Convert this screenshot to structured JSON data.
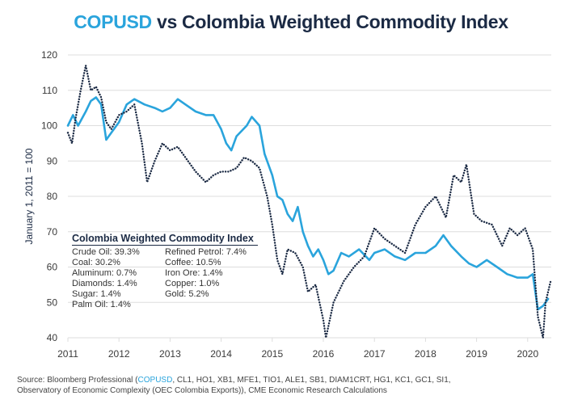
{
  "title": {
    "accent": "COPUSD",
    "rest": " vs Colombia Weighted Commodity Index"
  },
  "chart_data": {
    "type": "line",
    "title": "COPUSD vs Colombia Weighted Commodity Index",
    "xlabel": "",
    "ylabel": "January 1, 2011 = 100",
    "xlim": [
      2011,
      2020.45
    ],
    "ylim": [
      40,
      120
    ],
    "grid": true,
    "x_ticks": [
      2011,
      2012,
      2013,
      2014,
      2015,
      2016,
      2017,
      2018,
      2019,
      2020
    ],
    "x_tick_labels": [
      "2011",
      "2012",
      "2013",
      "2014",
      "2015",
      "2016",
      "2017",
      "2018",
      "2019",
      "2020"
    ],
    "y_ticks": [
      40,
      50,
      60,
      70,
      80,
      90,
      100,
      110,
      120
    ],
    "y_tick_labels": [
      "40",
      "50",
      "60",
      "70",
      "80",
      "90",
      "100",
      "110",
      "120"
    ],
    "series": [
      {
        "name": "COPUSD",
        "style": "solid",
        "color": "#2aa4dc",
        "x": [
          2011.0,
          2011.1,
          2011.2,
          2011.35,
          2011.45,
          2011.55,
          2011.65,
          2011.75,
          2011.85,
          2012.0,
          2012.15,
          2012.3,
          2012.5,
          2012.7,
          2012.85,
          2013.0,
          2013.15,
          2013.3,
          2013.5,
          2013.7,
          2013.85,
          2014.0,
          2014.1,
          2014.2,
          2014.3,
          2014.5,
          2014.6,
          2014.75,
          2014.85,
          2015.0,
          2015.1,
          2015.2,
          2015.3,
          2015.4,
          2015.5,
          2015.6,
          2015.7,
          2015.8,
          2015.9,
          2016.0,
          2016.1,
          2016.2,
          2016.35,
          2016.5,
          2016.7,
          2016.9,
          2017.0,
          2017.2,
          2017.4,
          2017.6,
          2017.8,
          2018.0,
          2018.2,
          2018.35,
          2018.5,
          2018.7,
          2018.85,
          2019.0,
          2019.2,
          2019.4,
          2019.6,
          2019.8,
          2020.0,
          2020.1,
          2020.2,
          2020.3,
          2020.4
        ],
        "values": [
          100,
          103,
          100,
          104,
          107,
          108,
          106,
          96,
          98,
          101,
          106,
          107.5,
          106,
          105,
          104,
          105,
          107.5,
          106,
          104,
          103,
          103,
          99,
          95,
          93,
          97,
          100,
          102.5,
          100,
          92,
          86,
          80,
          79,
          75,
          73,
          77,
          70,
          66,
          63,
          65,
          62,
          58,
          59,
          64,
          63,
          65,
          62,
          64,
          65,
          63,
          62,
          64,
          64,
          66,
          69,
          66,
          63,
          61,
          60,
          62,
          60,
          58,
          57,
          57,
          58,
          48,
          49,
          51
        ]
      },
      {
        "name": "Colombia Weighted Commodity Index",
        "style": "dotted",
        "color": "#1b2a44",
        "x": [
          2011.0,
          2011.08,
          2011.15,
          2011.25,
          2011.35,
          2011.45,
          2011.55,
          2011.65,
          2011.75,
          2011.85,
          2012.0,
          2012.15,
          2012.3,
          2012.45,
          2012.55,
          2012.7,
          2012.85,
          2013.0,
          2013.15,
          2013.3,
          2013.5,
          2013.7,
          2013.85,
          2014.0,
          2014.15,
          2014.3,
          2014.45,
          2014.6,
          2014.75,
          2014.9,
          2015.0,
          2015.1,
          2015.2,
          2015.3,
          2015.45,
          2015.6,
          2015.7,
          2015.85,
          2016.0,
          2016.05,
          2016.2,
          2016.4,
          2016.6,
          2016.8,
          2017.0,
          2017.2,
          2017.4,
          2017.6,
          2017.8,
          2018.0,
          2018.2,
          2018.4,
          2018.55,
          2018.7,
          2018.8,
          2018.95,
          2019.1,
          2019.3,
          2019.5,
          2019.65,
          2019.8,
          2019.95,
          2020.1,
          2020.2,
          2020.3,
          2020.35,
          2020.45
        ],
        "values": [
          98,
          95,
          102,
          110,
          117,
          110,
          111,
          108,
          101,
          99,
          103,
          104,
          106,
          95,
          84,
          90,
          95,
          93,
          94,
          91,
          87,
          84,
          86,
          87,
          87,
          88,
          91,
          90,
          88,
          80,
          72,
          62,
          58,
          65,
          64,
          60,
          53,
          55,
          45,
          40,
          50,
          56,
          60,
          63,
          71,
          68,
          66,
          64,
          72,
          77,
          80,
          74,
          86,
          84,
          89,
          75,
          73,
          72,
          66,
          71,
          69,
          71,
          65,
          46,
          40,
          50,
          56
        ]
      }
    ],
    "annotations": [
      {
        "title": "Colombia Weighted Commodity Index",
        "placement": "bottom-left",
        "left_column": [
          "Crude Oil: 39.3%",
          "Coal: 30.2%",
          "Aluminum: 0.7%",
          "Diamonds: 1.4%",
          "Sugar: 1.4%",
          "Palm Oil: 1.4%"
        ],
        "right_column": [
          "Refined Petrol: 7.4%",
          "Coffee: 10.5%",
          "Iron Ore: 1.4%",
          "Copper: 1.0%",
          "Gold: 5.2%"
        ]
      }
    ]
  },
  "legend": {
    "title": "Colombia Weighted Commodity Index",
    "left": [
      "Crude Oil: 39.3%",
      "Coal: 30.2%",
      "Aluminum: 0.7%",
      "Diamonds: 1.4%",
      "Sugar: 1.4%",
      "Palm Oil: 1.4%"
    ],
    "right": [
      "Refined Petrol: 7.4%",
      "Coffee: 10.5%",
      "Iron Ore: 1.4%",
      "Copper: 1.0%",
      "Gold: 5.2%"
    ]
  },
  "source": {
    "prefix": "Source: Bloomberg Professional (",
    "accent": "COPUSD",
    "line1_rest": ", CL1, HO1, XB1, MFE1, TIO1, ALE1, SB1, DIAM1CRT, HG1, KC1, GC1, SI1,",
    "line2": "Observatory of Economic Complexity (OEC Colombia Exports)), CME Economic Research Calculations"
  },
  "colors": {
    "copusd": "#2aa4dc",
    "index": "#1b2a44",
    "grid": "#dddddd"
  }
}
